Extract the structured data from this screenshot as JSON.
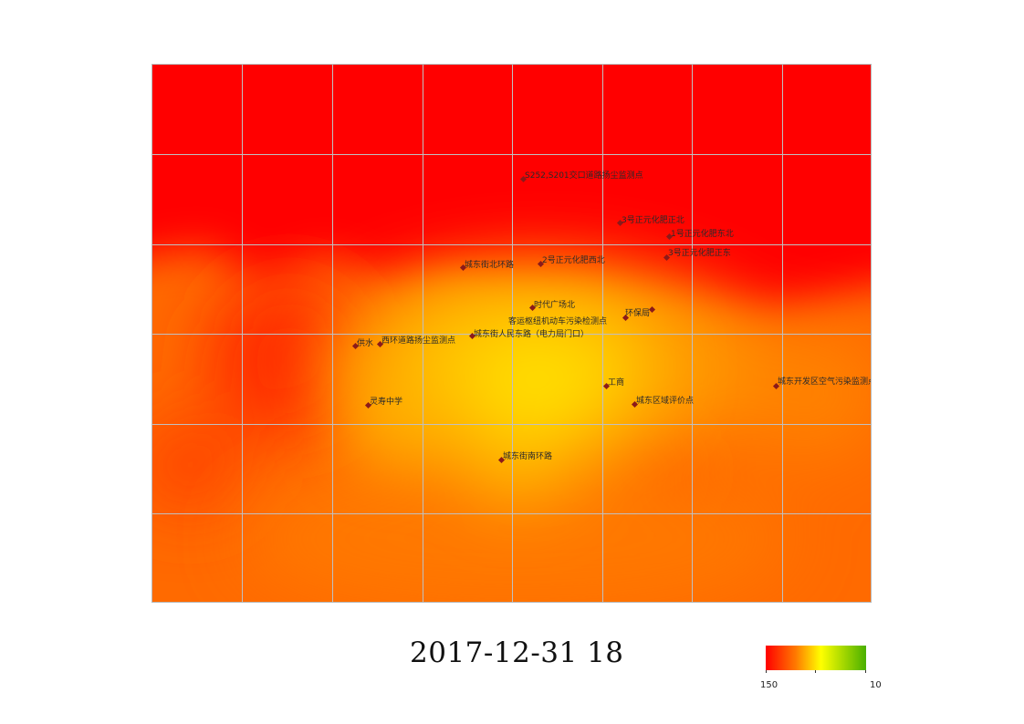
{
  "timestamp": "2017-12-31 18",
  "stations": [
    {
      "name": "S252,S201交口道路扬尘监测点",
      "level": 180
    },
    {
      "name": "3号正元化肥正北",
      "level": 175
    },
    {
      "name": "1号正元化肥东北",
      "level": 175
    },
    {
      "name": "城东街北环路",
      "level": 165
    },
    {
      "name": "2号正元化肥西北",
      "level": 160
    },
    {
      "name": "3号正元化肥正东",
      "level": 170
    },
    {
      "name": "时代广场北",
      "level": 105
    },
    {
      "name": "客运枢纽机动车污染检测点",
      "level": 100
    },
    {
      "name": "环保局",
      "level": 115
    },
    {
      "name": "城东街人民东路（电力局门口）",
      "level": 100
    },
    {
      "name": "西环道路扬尘监测点",
      "level": 125
    },
    {
      "name": "供水",
      "level": 140
    },
    {
      "name": "工商",
      "level": 95
    },
    {
      "name": "城东开发区空气污染监测点",
      "level": 135
    },
    {
      "name": "城东区域评价点",
      "level": 110
    },
    {
      "name": "灵寿中学",
      "level": 115
    },
    {
      "name": "城东街南环路",
      "level": 120
    }
  ],
  "legend": {
    "min_label": "150",
    "max_label": "10",
    "colors": [
      "#ff0000",
      "#ff7a00",
      "#ffff00",
      "#4ab000"
    ]
  },
  "colors": {
    "high": "#ff0000",
    "mid_high": "#ff5000",
    "mid": "#ff8a00",
    "low": "#ffce00",
    "lowest": "#ffe600",
    "grid": "#c0c0c0",
    "marker": "#8b1a1a"
  }
}
